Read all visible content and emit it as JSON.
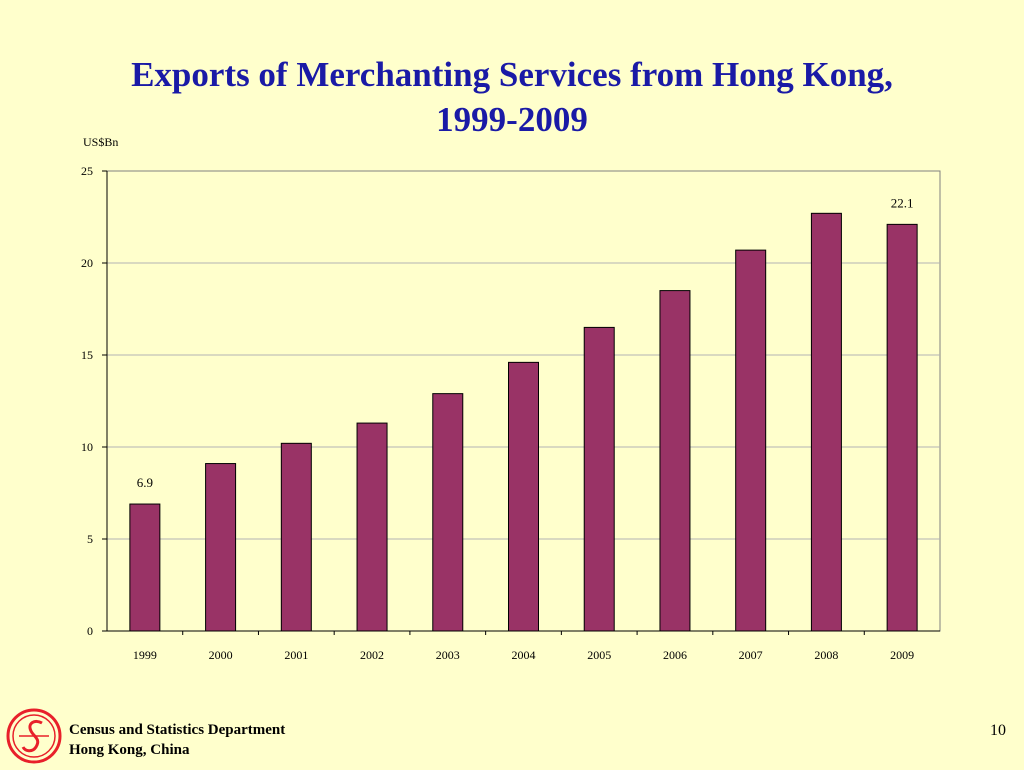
{
  "slide": {
    "title_line1": "Exports of Merchanting Services from Hong Kong,",
    "title_line2": "1999-2009",
    "org_line1": "Census and Statistics Department",
    "org_line2": "Hong Kong, China",
    "page_number": "10"
  },
  "colors": {
    "background": "#ffffcc",
    "title": "#1a1aa6",
    "bar": "#993366",
    "logo": "#e8202a"
  },
  "chart_data": {
    "type": "bar",
    "title": "Exports of Merchanting Services from Hong Kong, 1999-2009",
    "ylabel": "US$Bn",
    "xlabel": "",
    "categories": [
      "1999",
      "2000",
      "2001",
      "2002",
      "2003",
      "2004",
      "2005",
      "2006",
      "2007",
      "2008",
      "2009"
    ],
    "values": [
      6.9,
      9.1,
      10.2,
      11.3,
      12.9,
      14.6,
      16.5,
      18.5,
      20.7,
      22.7,
      22.1
    ],
    "data_labels": [
      {
        "index": 0,
        "text": "6.9"
      },
      {
        "index": 10,
        "text": "22.1"
      }
    ],
    "ylim": [
      0,
      25
    ],
    "yticks": [
      0,
      5,
      10,
      15,
      20,
      25
    ],
    "grid": true,
    "legend": "none"
  }
}
